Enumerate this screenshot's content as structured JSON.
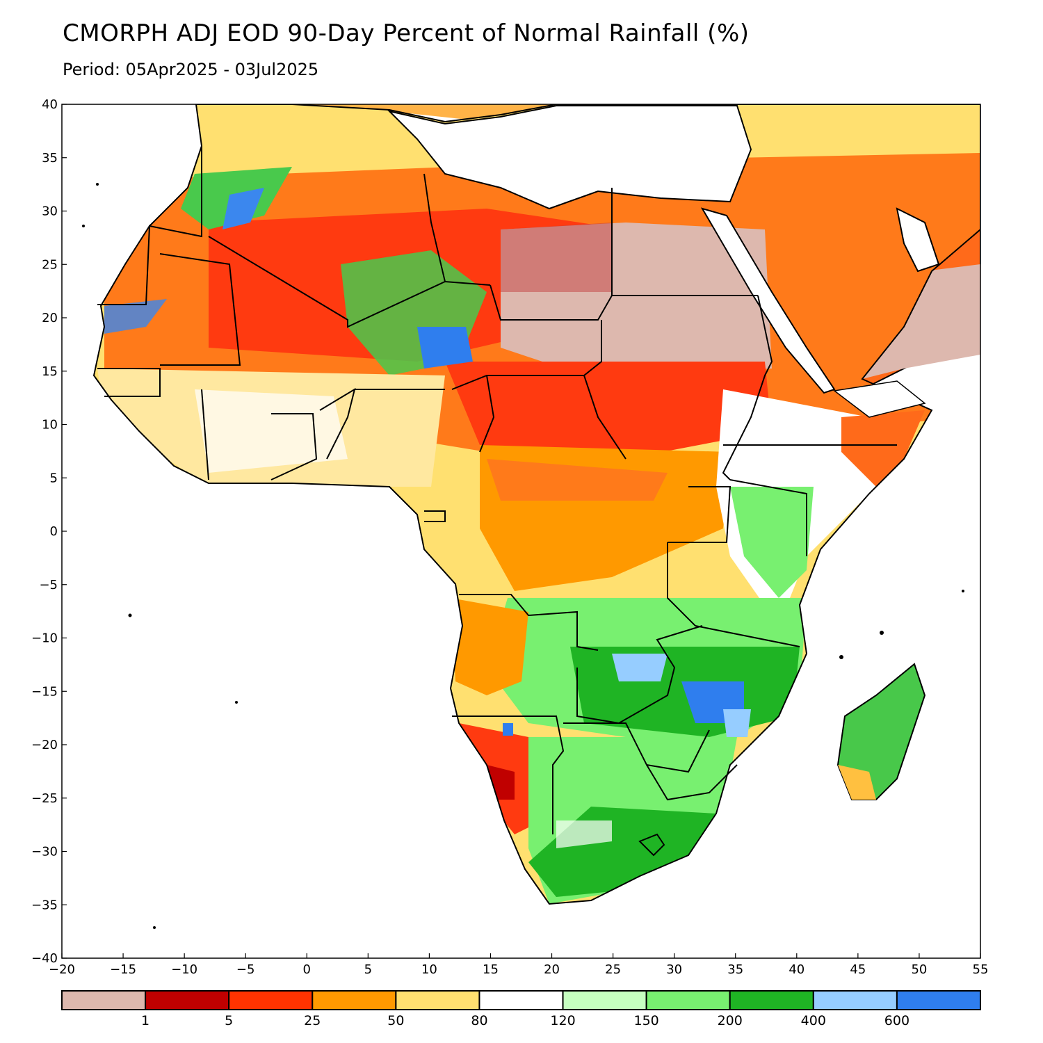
{
  "title": "CMORPH ADJ EOD 90-Day Percent of Normal Rainfall (%)",
  "subtitle": "Period: 05Apr2025 - 03Jul2025",
  "map": {
    "region": "Africa",
    "lon_range": [
      -20,
      55
    ],
    "lat_range": [
      -40,
      40
    ],
    "x_ticks": [
      "−20",
      "−15",
      "−10",
      "−5",
      "0",
      "5",
      "10",
      "15",
      "20",
      "25",
      "30",
      "35",
      "40",
      "45",
      "50",
      "55"
    ],
    "y_ticks": [
      "40",
      "35",
      "30",
      "25",
      "20",
      "15",
      "10",
      "5",
      "0",
      "−5",
      "−10",
      "−15",
      "−20",
      "−25",
      "−30",
      "−35",
      "−40"
    ]
  },
  "legend": {
    "colors": [
      "#ddb8ae",
      "#c00000",
      "#ff3300",
      "#ff9900",
      "#ffe070",
      "#ffffff",
      "#c6ffc0",
      "#78f070",
      "#1fb424",
      "#96cdff",
      "#2f7eee"
    ],
    "labels": [
      "1",
      "5",
      "25",
      "50",
      "80",
      "120",
      "150",
      "200",
      "400",
      "600"
    ]
  }
}
